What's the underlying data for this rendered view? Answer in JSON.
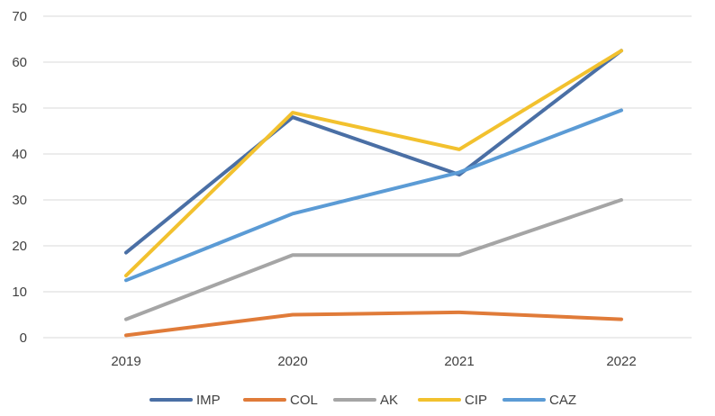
{
  "chart_data": {
    "type": "line",
    "title": "",
    "xlabel": "",
    "ylabel": "",
    "categories": [
      "2019",
      "2020",
      "2021",
      "2022"
    ],
    "ylim": [
      0,
      70
    ],
    "yticks": [
      0,
      10,
      20,
      30,
      40,
      50,
      60,
      70
    ],
    "grid": true,
    "legend_position": "bottom",
    "series": [
      {
        "name": "IMP",
        "color": "#4a6fa5",
        "values": [
          18.5,
          48,
          35.5,
          62.5
        ]
      },
      {
        "name": "COL",
        "color": "#e07b39",
        "values": [
          0.5,
          5,
          5.5,
          4
        ]
      },
      {
        "name": "AK",
        "color": "#a5a5a5",
        "values": [
          4,
          18,
          18,
          30
        ]
      },
      {
        "name": "CIP",
        "color": "#f2c12e",
        "values": [
          13.5,
          49,
          41,
          62.5
        ]
      },
      {
        "name": "CAZ",
        "color": "#5b9bd5",
        "values": [
          12.5,
          27,
          36,
          49.5
        ]
      }
    ]
  }
}
